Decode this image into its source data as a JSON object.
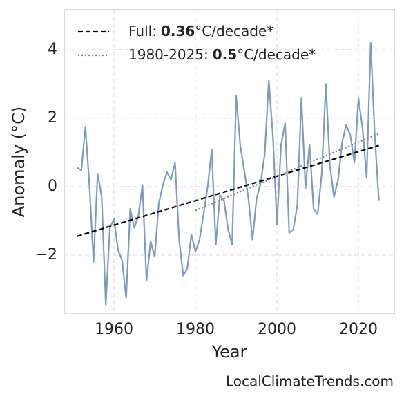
{
  "chart_data": {
    "type": "line",
    "xlabel": "Year",
    "ylabel": "Anomaly (°C)",
    "footer": "LocalClimateTrends.com",
    "xlim": [
      1947.8,
      2028.8
    ],
    "xticks": [
      1960,
      1980,
      2000,
      2020
    ],
    "ylim": [
      -3.7,
      5.17
    ],
    "yticks": [
      {
        "value": -2,
        "label": "−2"
      },
      0,
      2,
      4
    ],
    "grid": true,
    "legend": "upper left",
    "x": [
      1951,
      1952,
      1953,
      1954,
      1955,
      1956,
      1957,
      1958,
      1959,
      1960,
      1961,
      1962,
      1963,
      1964,
      1965,
      1966,
      1967,
      1968,
      1969,
      1970,
      1971,
      1972,
      1973,
      1974,
      1975,
      1976,
      1977,
      1978,
      1979,
      1980,
      1981,
      1982,
      1983,
      1984,
      1985,
      1986,
      1987,
      1988,
      1989,
      1990,
      1991,
      1992,
      1993,
      1994,
      1995,
      1996,
      1997,
      1998,
      1999,
      2000,
      2001,
      2002,
      2003,
      2004,
      2005,
      2006,
      2007,
      2008,
      2009,
      2010,
      2011,
      2012,
      2013,
      2014,
      2015,
      2016,
      2017,
      2018,
      2019,
      2020,
      2021,
      2022,
      2023,
      2024,
      2025
    ],
    "values": [
      0.55,
      0.48,
      1.75,
      0.0,
      -2.2,
      0.38,
      -0.3,
      -3.45,
      -1.2,
      -0.95,
      -1.85,
      -2.15,
      -3.25,
      -0.65,
      -1.2,
      -0.85,
      0.05,
      -2.75,
      -1.6,
      -2.05,
      -0.5,
      0.05,
      0.42,
      0.2,
      0.7,
      -1.55,
      -2.6,
      -2.4,
      -1.4,
      -1.9,
      -1.55,
      -0.8,
      0.0,
      1.08,
      -1.7,
      -0.25,
      -0.4,
      -1.25,
      -1.7,
      2.65,
      1.2,
      0.45,
      -0.35,
      -1.55,
      -0.35,
      0.1,
      0.95,
      3.1,
      1.5,
      -1.1,
      1.2,
      1.85,
      -1.35,
      -1.25,
      -0.55,
      2.58,
      -0.05,
      1.22,
      -0.65,
      -0.8,
      0.4,
      3.0,
      0.6,
      -0.3,
      0.2,
      1.3,
      1.8,
      1.5,
      0.7,
      2.58,
      1.7,
      0.25,
      4.2,
      1.5,
      -0.4
    ],
    "color": "#7b9cbf",
    "trends": [
      {
        "label": "Full:",
        "slope": 0.36,
        "unit": "°C/decade*",
        "x": [
          1951,
          2025
        ],
        "values": [
          -1.45,
          1.2
        ],
        "color": "#000000",
        "dash": "7,4"
      },
      {
        "label": "1980-2025:",
        "slope": 0.5,
        "unit": "°C/decade*",
        "x": [
          1980,
          2025
        ],
        "values": [
          -0.7,
          1.55
        ],
        "color": "#808080",
        "dash": "2,3"
      }
    ]
  }
}
